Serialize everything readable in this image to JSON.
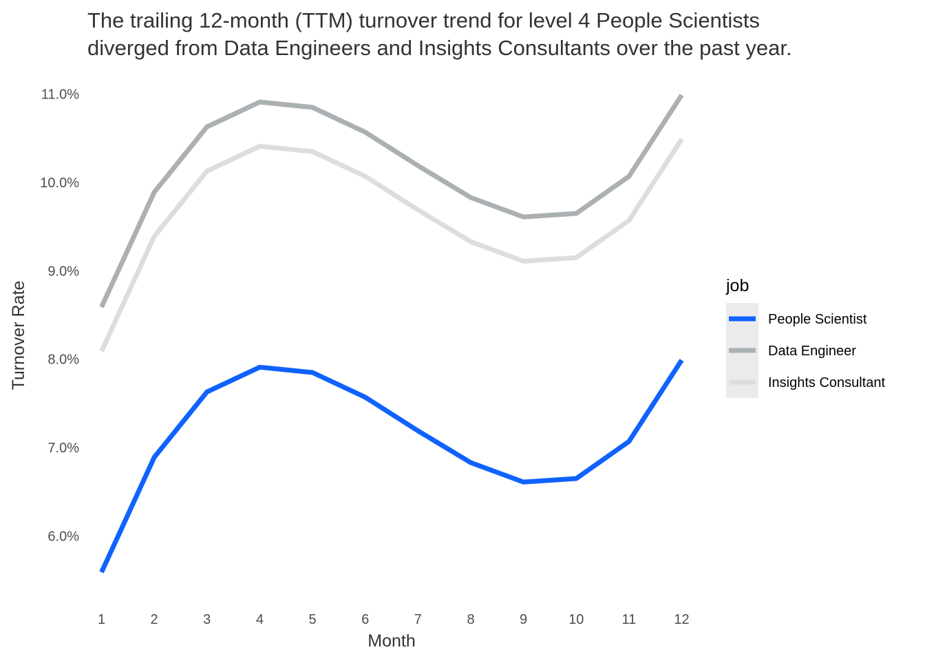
{
  "chart_data": {
    "type": "line",
    "title_lines": [
      "The trailing 12-month (TTM) turnover trend for level 4 People Scientists",
      "diverged from Data Engineers and Insights Consultants over the past year."
    ],
    "xlabel": "Month",
    "ylabel": "Turnover Rate",
    "x": [
      1,
      2,
      3,
      4,
      5,
      6,
      7,
      8,
      9,
      10,
      11,
      12
    ],
    "x_tick_labels": [
      "1",
      "2",
      "3",
      "4",
      "5",
      "6",
      "7",
      "8",
      "9",
      "10",
      "11",
      "12"
    ],
    "y_ticks": [
      0.06,
      0.07,
      0.08,
      0.09,
      0.1,
      0.11
    ],
    "y_tick_labels": [
      "6.0%",
      "7.0%",
      "8.0%",
      "9.0%",
      "10.0%",
      "11.0%"
    ],
    "xlim": [
      0.72,
      12.28
    ],
    "ylim": [
      0.0531,
      0.1113
    ],
    "grid": false,
    "legend": {
      "title": "job",
      "placement": "right"
    },
    "series": [
      {
        "name": "People Scientist",
        "color": "#0f62fe",
        "values": [
          0.0559,
          0.0689,
          0.0763,
          0.0791,
          0.0785,
          0.0757,
          0.0719,
          0.0683,
          0.0661,
          0.0665,
          0.0707,
          0.0799
        ]
      },
      {
        "name": "Data Engineer",
        "color": "#abb0b3",
        "values": [
          0.0859,
          0.0989,
          0.1063,
          0.1091,
          0.1085,
          0.1057,
          0.1019,
          0.0983,
          0.0961,
          0.0965,
          0.1007,
          0.1099
        ]
      },
      {
        "name": "Insights Consultant",
        "color": "#dcdede",
        "values": [
          0.0809,
          0.0939,
          0.1013,
          0.1041,
          0.1035,
          0.1007,
          0.0969,
          0.0933,
          0.0911,
          0.0915,
          0.0957,
          0.1049
        ]
      }
    ],
    "colors": {
      "legend_background": "#ebebeb",
      "text": "#333333",
      "tick_text": "#4d4d4d"
    }
  }
}
